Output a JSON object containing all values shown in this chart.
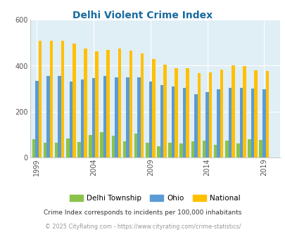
{
  "title": "Delhi Violent Crime Index",
  "years": [
    1999,
    2000,
    2001,
    2002,
    2003,
    2004,
    2005,
    2006,
    2007,
    2008,
    2009,
    2010,
    2011,
    2012,
    2013,
    2014,
    2015,
    2016,
    2017,
    2018,
    2019
  ],
  "delhi": [
    80,
    65,
    65,
    85,
    68,
    100,
    110,
    95,
    70,
    105,
    65,
    50,
    65,
    62,
    70,
    75,
    55,
    75,
    62,
    80,
    78
  ],
  "ohio": [
    335,
    355,
    355,
    330,
    340,
    345,
    355,
    350,
    350,
    350,
    330,
    315,
    310,
    305,
    275,
    285,
    298,
    305,
    303,
    302,
    297
  ],
  "national": [
    510,
    510,
    510,
    495,
    475,
    463,
    470,
    475,
    465,
    455,
    430,
    405,
    388,
    390,
    367,
    372,
    383,
    400,
    397,
    380,
    378
  ],
  "delhi_color": "#8bc34a",
  "ohio_color": "#5b9bd5",
  "national_color": "#ffc000",
  "bg_color": "#e0eef5",
  "title_color": "#1a6ba0",
  "ylabel_max": 600,
  "yticks": [
    0,
    200,
    400,
    600
  ],
  "note": "Crime Index corresponds to incidents per 100,000 inhabitants",
  "copyright": "© 2025 CityRating.com - https://www.cityrating.com/crime-statistics/",
  "bar_width": 0.28,
  "xtick_years": [
    1999,
    2004,
    2009,
    2014,
    2019
  ],
  "legend_labels": [
    "Delhi Township",
    "Ohio",
    "National"
  ]
}
